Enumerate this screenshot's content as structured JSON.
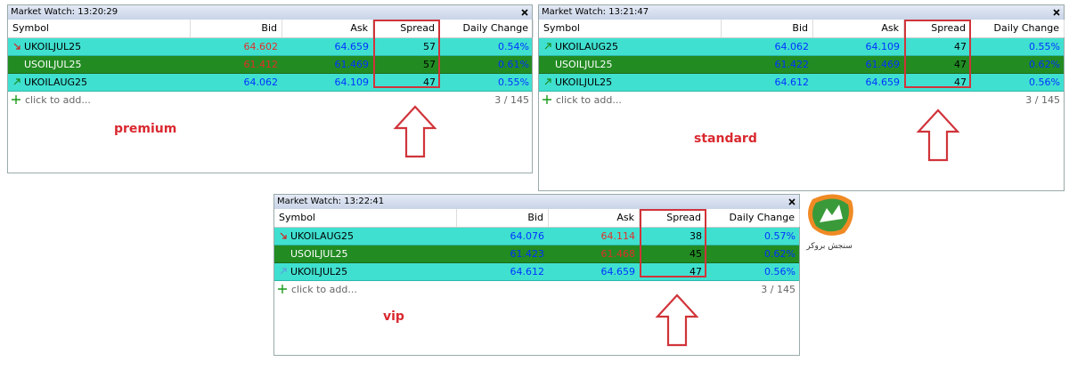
{
  "panels": [
    {
      "title": "Market Watch: 13:20:29",
      "headers": [
        "Symbol",
        "Bid",
        "Ask",
        "Spread",
        "Daily Change"
      ],
      "rows": [
        [
          "UKOILJUL25",
          "64.602",
          "64.659",
          "57",
          "0.54%"
        ],
        [
          "USOILJUL25",
          "61.412",
          "61.469",
          "57",
          "0.61%"
        ],
        [
          "UKOILAUG25",
          "64.062",
          "64.109",
          "47",
          "0.55%"
        ]
      ],
      "add": "click to add...",
      "count": "3 / 145",
      "label": "premium"
    },
    {
      "title": "Market Watch: 13:21:47",
      "headers": [
        "Symbol",
        "Bid",
        "Ask",
        "Spread",
        "Daily Change"
      ],
      "rows": [
        [
          "UKOILAUG25",
          "64.062",
          "64.109",
          "47",
          "0.55%"
        ],
        [
          "USOILJUL25",
          "61.422",
          "61.469",
          "47",
          "0.62%"
        ],
        [
          "UKOILJUL25",
          "64.612",
          "64.659",
          "47",
          "0.56%"
        ]
      ],
      "add": "click to add...",
      "count": "3 / 145",
      "label": "standard"
    },
    {
      "title": "Market Watch: 13:22:41",
      "headers": [
        "Symbol",
        "Bid",
        "Ask",
        "Spread",
        "Daily Change"
      ],
      "rows": [
        [
          "UKOILAUG25",
          "64.076",
          "64.114",
          "38",
          "0.57%"
        ],
        [
          "USOILJUL25",
          "61.423",
          "61.468",
          "45",
          "0.62%"
        ],
        [
          "UKOILJUL25",
          "64.612",
          "64.659",
          "47",
          "0.56%"
        ]
      ],
      "add": "click to add...",
      "count": "3 / 145",
      "label": "vip"
    }
  ],
  "logo": {
    "text": "سنجش بروکر"
  }
}
